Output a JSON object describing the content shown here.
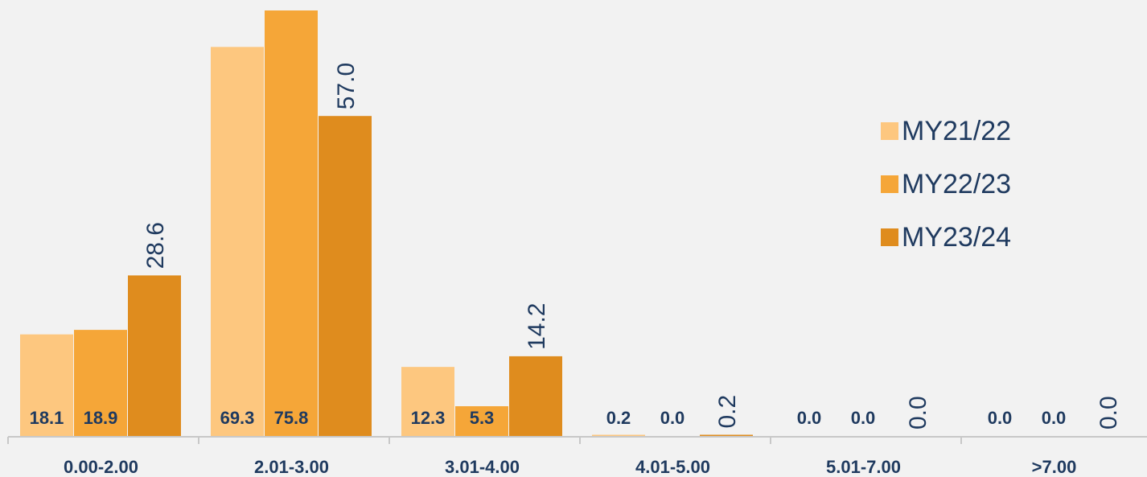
{
  "chart_data": {
    "type": "bar",
    "categories": [
      "0.00-2.00",
      "2.01-3.00",
      "3.01-4.00",
      "4.01-5.00",
      "5.01-7.00",
      ">7.00"
    ],
    "series": [
      {
        "name": "MY21/22",
        "color": "#fdc77f",
        "values": [
          18.1,
          69.3,
          12.3,
          0.2,
          0.0,
          0.0
        ],
        "labels": [
          "18.1",
          "69.3",
          "12.3",
          "0.2",
          "0.0",
          "0.0"
        ]
      },
      {
        "name": "MY22/23",
        "color": "#f5a638",
        "values": [
          18.9,
          75.8,
          5.3,
          0.0,
          0.0,
          0.0
        ],
        "labels": [
          "18.9",
          "75.8",
          "5.3",
          "0.0",
          "0.0",
          "0.0"
        ]
      },
      {
        "name": "MY23/24",
        "color": "#df8c1e",
        "values": [
          28.6,
          57.0,
          14.2,
          0.2,
          0.0,
          0.0
        ],
        "labels": [
          "28.6",
          "57.0",
          "14.2",
          "0.2",
          "0.0",
          "0.0"
        ]
      }
    ],
    "ylim": [
      0,
      75.8
    ],
    "grid": false,
    "legend_position": "right"
  }
}
